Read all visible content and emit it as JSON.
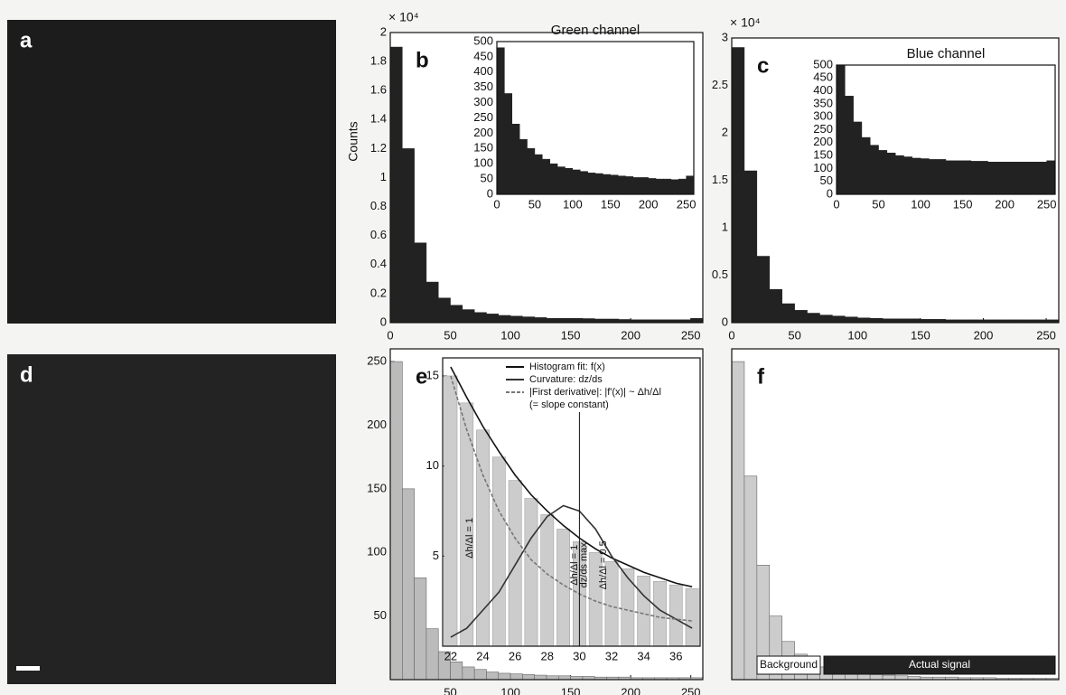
{
  "chart_data": [
    {
      "type": "image",
      "panel": "a"
    },
    {
      "type": "histogram",
      "panel": "b",
      "y_label": "Counts",
      "y_multiplier": "× 10⁴",
      "bins": [
        0,
        10,
        20,
        30,
        40,
        50,
        60,
        70,
        80,
        90,
        100,
        110,
        120,
        130,
        140,
        150,
        160,
        170,
        180,
        190,
        200,
        210,
        220,
        230,
        240,
        250,
        260
      ],
      "values": [
        1.9,
        1.2,
        0.55,
        0.28,
        0.17,
        0.12,
        0.09,
        0.07,
        0.06,
        0.05,
        0.045,
        0.04,
        0.035,
        0.03,
        0.03,
        0.03,
        0.028,
        0.025,
        0.025,
        0.022,
        0.02,
        0.02,
        0.02,
        0.02,
        0.02,
        0.03
      ],
      "color": "#222222",
      "xlim": [
        0,
        260
      ],
      "ylim": [
        0,
        2
      ],
      "xticks": [
        0,
        50,
        100,
        150,
        200,
        250
      ],
      "yticks": [
        0,
        0.2,
        0.4,
        0.6,
        0.8,
        1,
        1.2,
        1.4,
        1.6,
        1.8,
        2
      ],
      "inset": {
        "type": "histogram",
        "title": "Green channel",
        "bins": [
          0,
          10,
          20,
          30,
          40,
          50,
          60,
          70,
          80,
          90,
          100,
          110,
          120,
          130,
          140,
          150,
          160,
          170,
          180,
          190,
          200,
          210,
          220,
          230,
          240,
          250,
          260
        ],
        "values": [
          480,
          330,
          230,
          180,
          150,
          130,
          115,
          100,
          90,
          85,
          80,
          75,
          70,
          68,
          65,
          63,
          60,
          58,
          55,
          55,
          52,
          50,
          50,
          48,
          50,
          60
        ],
        "color": "#222222",
        "xlim": [
          0,
          260
        ],
        "ylim": [
          0,
          500
        ],
        "xticks": [
          0,
          50,
          100,
          150,
          200,
          250
        ],
        "yticks": [
          0,
          50,
          100,
          150,
          200,
          250,
          300,
          350,
          400,
          450,
          500
        ]
      }
    },
    {
      "type": "histogram",
      "panel": "c",
      "y_multiplier": "× 10⁴",
      "bins": [
        0,
        10,
        20,
        30,
        40,
        50,
        60,
        70,
        80,
        90,
        100,
        110,
        120,
        130,
        140,
        150,
        160,
        170,
        180,
        190,
        200,
        210,
        220,
        230,
        240,
        250,
        260
      ],
      "values": [
        2.9,
        1.6,
        0.7,
        0.35,
        0.2,
        0.13,
        0.1,
        0.08,
        0.07,
        0.06,
        0.05,
        0.045,
        0.04,
        0.04,
        0.04,
        0.035,
        0.035,
        0.03,
        0.03,
        0.03,
        0.03,
        0.03,
        0.03,
        0.03,
        0.03,
        0.03
      ],
      "color": "#222222",
      "xlim": [
        0,
        260
      ],
      "ylim": [
        0,
        3
      ],
      "xticks": [
        0,
        50,
        100,
        150,
        200,
        250
      ],
      "yticks": [
        0,
        0.5,
        1,
        1.5,
        2,
        2.5,
        3
      ],
      "inset": {
        "type": "histogram",
        "title": "Blue channel",
        "bins": [
          0,
          10,
          20,
          30,
          40,
          50,
          60,
          70,
          80,
          90,
          100,
          110,
          120,
          130,
          140,
          150,
          160,
          170,
          180,
          190,
          200,
          210,
          220,
          230,
          240,
          250,
          260
        ],
        "values": [
          500,
          380,
          280,
          220,
          190,
          170,
          160,
          150,
          145,
          140,
          138,
          135,
          135,
          130,
          130,
          130,
          128,
          128,
          125,
          125,
          125,
          125,
          125,
          125,
          125,
          130
        ],
        "color": "#222222",
        "xlim": [
          0,
          260
        ],
        "ylim": [
          0,
          500
        ],
        "xticks": [
          0,
          50,
          100,
          150,
          200,
          250
        ],
        "yticks": [
          0,
          50,
          100,
          150,
          200,
          250,
          300,
          350,
          400,
          450,
          500
        ]
      }
    },
    {
      "type": "image",
      "panel": "d"
    },
    {
      "type": "histogram",
      "panel": "e",
      "bins": [
        0,
        10,
        20,
        30,
        40,
        50,
        60,
        70,
        80,
        90,
        100,
        110,
        120,
        130,
        140,
        150,
        160,
        170,
        180,
        190,
        200,
        210,
        220,
        230,
        240,
        250,
        260
      ],
      "values": [
        250,
        150,
        80,
        40,
        22,
        14,
        10,
        8,
        6,
        5,
        4.5,
        4,
        3.5,
        3,
        3,
        2.5,
        2.5,
        2,
        2,
        2,
        1.5,
        1.5,
        1.5,
        1.5,
        1.5,
        1.5
      ],
      "color": "#bbbbbb",
      "xlim": [
        0,
        260
      ],
      "ylim": [
        0,
        260
      ],
      "xticks": [
        50,
        100,
        150,
        200,
        250
      ],
      "yticks": [
        50,
        100,
        150,
        200,
        250
      ],
      "inset": {
        "type": "combo",
        "x": [
          22,
          23,
          24,
          25,
          26,
          27,
          28,
          29,
          30,
          31,
          32,
          33,
          34,
          35,
          36,
          37
        ],
        "bar_values": [
          15,
          13.5,
          12,
          10.5,
          9.2,
          8.2,
          7.3,
          6.5,
          5.8,
          5.2,
          4.7,
          4.3,
          3.9,
          3.6,
          3.4,
          3.2
        ],
        "bar_color": "#cccccc",
        "series": [
          {
            "name": "Histogram fit: f(x)",
            "color": "#111111",
            "values": [
              15.5,
              13.8,
              12.2,
              10.8,
              9.5,
              8.4,
              7.5,
              6.7,
              6,
              5.4,
              4.9,
              4.5,
              4.1,
              3.8,
              3.5,
              3.3
            ]
          },
          {
            "name": "Curvature: dz/ds",
            "color": "#333333",
            "values": [
              0.5,
              1,
              2,
              3,
              4.5,
              6,
              7.2,
              7.8,
              7.5,
              6.5,
              5,
              3.8,
              2.8,
              2,
              1.5,
              1
            ]
          },
          {
            "name": "|First derivative|: |f'(x)| ~ Δh/Δl",
            "color": "#777777",
            "values": [
              15,
              12,
              9.5,
              7.5,
              6,
              4.8,
              4,
              3.4,
              2.9,
              2.5,
              2.2,
              2,
              1.8,
              1.6,
              1.5,
              1.4
            ]
          }
        ],
        "legend_note": "(= slope constant)",
        "annotations": [
          "Δh/Δl = 1",
          "Δh/Δl = 1",
          "dz/ds max",
          "Δh/Δl = 0.5"
        ],
        "xlim": [
          21.5,
          37.5
        ],
        "ylim": [
          0,
          16
        ],
        "xticks": [
          22,
          24,
          26,
          28,
          30,
          32,
          34,
          36
        ],
        "yticks": [
          5,
          10,
          15
        ]
      }
    },
    {
      "type": "histogram",
      "panel": "f",
      "bins": [
        0,
        10,
        20,
        30,
        40,
        50,
        60,
        70,
        80,
        90,
        100,
        110,
        120,
        130,
        140,
        150,
        160,
        170,
        180,
        190,
        200,
        210,
        220,
        230,
        240,
        250,
        260
      ],
      "values": [
        250,
        160,
        90,
        50,
        30,
        20,
        14,
        10,
        8,
        6,
        5,
        4,
        3.5,
        3,
        2.5,
        2,
        2,
        2,
        1.5,
        1.5,
        1.5,
        1,
        1,
        1,
        1,
        1
      ],
      "color": "#cccccc",
      "xlim": [
        0,
        260
      ],
      "ylim": [
        0,
        260
      ],
      "regions": [
        "Background",
        "Actual signal"
      ]
    }
  ]
}
